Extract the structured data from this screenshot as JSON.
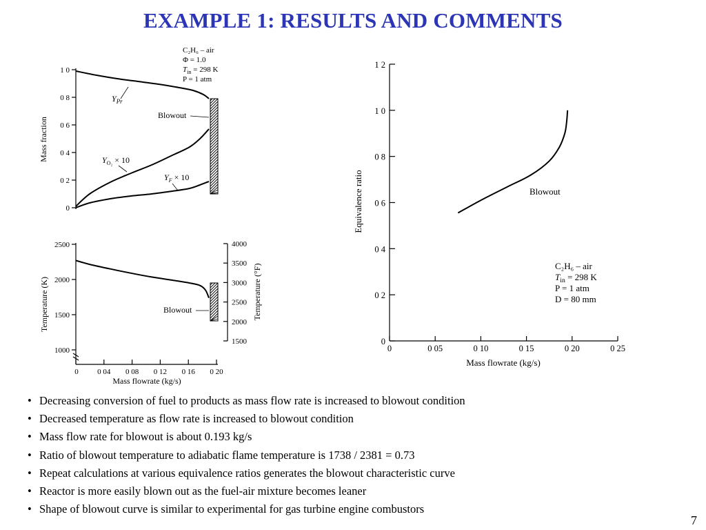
{
  "slide": {
    "title": "EXAMPLE 1: RESULTS AND COMMENTS",
    "page_number": "7",
    "bullets": [
      "Decreasing conversion of fuel to products as mass flow rate is increased to blowout condition",
      "Decreased temperature as flow rate is increased to blowout condition",
      "Mass flow rate for blowout is about 0.193 kg/s",
      "Ratio of blowout temperature to adiabatic flame temperature is 1738 / 2381 = 0.73",
      "Repeat calculations at various equivalence ratios generates the blowout characteristic curve",
      "Reactor is more easily blown out as the fuel-air mixture becomes leaner",
      "Shape of blowout curve is similar to experimental for gas turbine engine combustors"
    ]
  },
  "chart_data": [
    {
      "type": "line",
      "ylabel": "Mass fraction",
      "ylim": [
        0,
        1.0
      ],
      "yticks": [
        "0",
        "0 2",
        "0 4",
        "0 6",
        "0 8",
        "1 0"
      ],
      "conditions": [
        "C₂H₆ – air",
        "Φ = 1.0",
        "T_in = 298 K",
        "P = 1 atm"
      ],
      "annotations": [
        "Y_Pr",
        "Blowout",
        "Y_O₂ × 10",
        "Y_F × 10"
      ],
      "series": [
        {
          "name": "Y_Pr",
          "x": [
            0,
            0.03,
            0.06,
            0.09,
            0.12,
            0.15,
            0.17,
            0.185,
            0.193
          ],
          "y": [
            0.99,
            0.96,
            0.935,
            0.915,
            0.895,
            0.87,
            0.85,
            0.82,
            0.79
          ]
        },
        {
          "name": "Y_O₂ × 10",
          "x": [
            0,
            0.02,
            0.05,
            0.08,
            0.11,
            0.14,
            0.165,
            0.18,
            0.193
          ],
          "y": [
            0.01,
            0.1,
            0.185,
            0.25,
            0.31,
            0.38,
            0.44,
            0.5,
            0.57
          ]
        },
        {
          "name": "Y_F × 10",
          "x": [
            0,
            0.02,
            0.05,
            0.08,
            0.11,
            0.14,
            0.165,
            0.18,
            0.193
          ],
          "y": [
            0.0,
            0.035,
            0.065,
            0.085,
            0.1,
            0.12,
            0.14,
            0.165,
            0.19
          ]
        }
      ]
    },
    {
      "type": "line",
      "xlabel": "Mass flowrate (kg/s)",
      "ylabel": "Temperature (K)",
      "y2label": "Temperature (°F)",
      "xlim": [
        0,
        0.2
      ],
      "ylim": [
        1000,
        2500
      ],
      "xticks": [
        "0",
        "0 04",
        "0 08",
        "0 12",
        "0 16",
        "0 20"
      ],
      "yticks": [
        "1000",
        "1500",
        "2000",
        "2500"
      ],
      "y2ticks": [
        "1500",
        "2000",
        "2500",
        "3000",
        "3500",
        "4000"
      ],
      "annotations": [
        "Blowout"
      ],
      "series": [
        {
          "name": "T",
          "x": [
            0,
            0.02,
            0.05,
            0.08,
            0.11,
            0.14,
            0.165,
            0.18,
            0.188,
            0.193
          ],
          "y": [
            2270,
            2215,
            2150,
            2090,
            2035,
            1990,
            1950,
            1915,
            1850,
            1738
          ]
        }
      ]
    },
    {
      "type": "line",
      "xlabel": "Mass flowrate (kg/s)",
      "ylabel": "Equivalence ratio",
      "xlim": [
        0,
        0.25
      ],
      "ylim": [
        0,
        1.2
      ],
      "xticks": [
        "0",
        "0 05",
        "0 10",
        "0 15",
        "0 20",
        "0 25"
      ],
      "yticks": [
        "0",
        "0 2",
        "0 4",
        "0 6",
        "0 8",
        "1 0",
        "1 2"
      ],
      "conditions": [
        "C₂H₆ – air",
        "T_in = 298 K",
        "P = 1 atm",
        "D = 80 mm"
      ],
      "annotations": [
        "Blowout"
      ],
      "series": [
        {
          "name": "Blowout",
          "x": [
            0.075,
            0.1,
            0.13,
            0.155,
            0.175,
            0.186,
            0.192,
            0.194,
            0.195
          ],
          "y": [
            0.555,
            0.61,
            0.67,
            0.72,
            0.78,
            0.84,
            0.9,
            0.95,
            1.0
          ]
        }
      ]
    }
  ]
}
